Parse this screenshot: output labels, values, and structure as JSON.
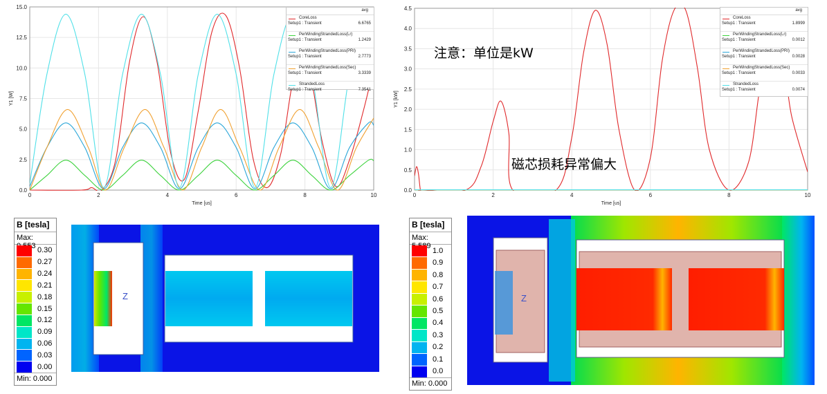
{
  "chart_data": [
    {
      "type": "line",
      "xlabel": "Time [us]",
      "ylabel": "Y1 [W]",
      "xlim": [
        0,
        10
      ],
      "ylim": [
        0,
        15
      ],
      "x_ticks": [
        "0",
        "2",
        "4",
        "6",
        "8",
        "10"
      ],
      "y_ticks": [
        "0.0",
        "2.5",
        "5.0",
        "7.5",
        "10.0",
        "12.5",
        "15.0"
      ],
      "grid": true,
      "legend_position": "top-right",
      "legend_header": "avg",
      "series": [
        {
          "name": "CoreLoss",
          "setup": "Setup1 : Transient",
          "avg": "6.6765",
          "color": "#e0282a",
          "x": [
            0,
            1.5,
            1.8,
            2.1,
            2.5,
            2.9,
            3.3,
            3.7,
            4.1,
            4.5,
            4.9,
            5.3,
            5.7,
            6.1,
            6.5,
            6.9,
            7.3,
            7.7,
            8.1,
            8.5,
            8.9,
            9.3,
            9.7,
            10
          ],
          "y": [
            0,
            0,
            0.2,
            0,
            2.5,
            10.5,
            14.2,
            10.5,
            3.0,
            0.9,
            6.5,
            13.0,
            14.3,
            10.0,
            2.5,
            0.2,
            3.0,
            9.5,
            10.0,
            4.0,
            0.3,
            2.5,
            6.5,
            10.0
          ]
        },
        {
          "name": "PerWindingStrandedLoss(Lr)",
          "setup": "Setup1 : Transient",
          "avg": "1.2429",
          "color": "#3cd23c",
          "x": [
            0,
            0.5,
            1.05,
            1.6,
            2.15,
            2.7,
            3.25,
            3.8,
            4.35,
            4.9,
            5.45,
            6.0,
            6.55,
            7.1,
            7.65,
            8.2,
            8.75,
            9.3,
            9.85,
            10
          ],
          "y": [
            0,
            1.2,
            2.45,
            1.2,
            0,
            1.2,
            2.45,
            1.2,
            0,
            1.2,
            2.45,
            1.2,
            0,
            1.2,
            2.45,
            1.2,
            0,
            1.2,
            2.45,
            2.4
          ]
        },
        {
          "name": "PerWindingStrandedLoss(PRI)",
          "setup": "Setup1 : Transient",
          "avg": "2.7773",
          "color": "#2aa6d8",
          "x": [
            0,
            0.5,
            1.05,
            1.6,
            2.15,
            2.7,
            3.25,
            3.8,
            4.35,
            4.9,
            5.45,
            6.0,
            6.55,
            7.1,
            7.65,
            8.2,
            8.75,
            9.3,
            9.85,
            10
          ],
          "y": [
            0.3,
            3.5,
            5.5,
            3.5,
            0.1,
            3.5,
            5.5,
            3.5,
            0.1,
            3.5,
            5.5,
            3.5,
            0.1,
            3.5,
            5.5,
            3.5,
            0.1,
            3.5,
            5.5,
            5.3
          ]
        },
        {
          "name": "PerWindingStrandedLoss(Sec)",
          "setup": "Setup1 : Transient",
          "avg": "3.3339",
          "color": "#f0a030",
          "x": [
            0,
            0.5,
            1.1,
            1.7,
            2.2,
            2.75,
            3.35,
            3.9,
            4.45,
            5.0,
            5.55,
            6.1,
            6.7,
            7.25,
            7.85,
            8.4,
            8.95,
            9.5,
            10
          ],
          "y": [
            0,
            3.5,
            6.6,
            3.5,
            0,
            3.5,
            6.6,
            3.5,
            0,
            3.5,
            6.6,
            3.5,
            0,
            3.5,
            6.6,
            3.5,
            0,
            3.5,
            5.9
          ]
        },
        {
          "name": "StrandedLoss",
          "setup": "Setup1 : Transient",
          "avg": "7.3541",
          "color": "#4fe0e8",
          "x": [
            0,
            0.5,
            1.05,
            1.6,
            2.15,
            2.7,
            3.25,
            3.8,
            4.35,
            4.9,
            5.45,
            6.0,
            6.55,
            7.1,
            7.65,
            8.2,
            8.75,
            9.3,
            9.85,
            10
          ],
          "y": [
            0.5,
            9.5,
            14.4,
            9.5,
            0.2,
            9.5,
            14.4,
            9.5,
            0.2,
            9.5,
            14.4,
            9.5,
            0.2,
            9.5,
            14.4,
            9.5,
            0.2,
            9.5,
            14.4,
            14.0
          ]
        }
      ]
    },
    {
      "type": "line",
      "xlabel": "Time [us]",
      "ylabel": "Y1 [kW]",
      "xlim": [
        0,
        10
      ],
      "ylim": [
        0,
        4.5
      ],
      "x_ticks": [
        "0",
        "2",
        "4",
        "6",
        "8",
        "10"
      ],
      "y_ticks": [
        "0.0",
        "0.5",
        "1.0",
        "1.5",
        "2.0",
        "2.5",
        "3.0",
        "3.5",
        "4.0",
        "4.5"
      ],
      "grid": true,
      "legend_position": "top-right",
      "legend_header": "avg",
      "series": [
        {
          "name": "CoreLoss",
          "setup": "Setup1 : Transient",
          "avg": "1.8999",
          "color": "#e0282a",
          "x": [
            0,
            0.05,
            0.1,
            0.15,
            0.2,
            1.3,
            1.7,
            2.0,
            2.2,
            2.4,
            2.5,
            3.6,
            4.0,
            4.3,
            4.6,
            4.9,
            5.2,
            5.6,
            6.0,
            6.3,
            6.6,
            6.9,
            7.2,
            7.5,
            8.0,
            8.5,
            8.8,
            9.1,
            9.4,
            9.6,
            10
          ],
          "y": [
            0.35,
            0.58,
            0.4,
            0,
            0,
            0,
            0.6,
            1.7,
            2.2,
            1.4,
            0,
            0,
            1.3,
            3.4,
            4.45,
            3.6,
            1.5,
            0,
            0.8,
            3.2,
            4.45,
            4.45,
            3.0,
            1.0,
            0,
            0.7,
            2.6,
            3.5,
            3.0,
            1.8,
            0.45
          ]
        },
        {
          "name": "PerWindingStrandedLoss(Lr)",
          "setup": "Setup1 : Transient",
          "avg": "0.0012",
          "color": "#3cd23c",
          "x": [
            0,
            10
          ],
          "y": [
            0.001,
            0.001
          ]
        },
        {
          "name": "PerWindingStrandedLoss(PRI)",
          "setup": "Setup1 : Transient",
          "avg": "0.0028",
          "color": "#2aa6d8",
          "x": [
            0,
            10
          ],
          "y": [
            0.003,
            0.003
          ]
        },
        {
          "name": "PerWindingStrandedLoss(Sec)",
          "setup": "Setup1 : Transient",
          "avg": "0.0033",
          "color": "#f0a030",
          "x": [
            0,
            10
          ],
          "y": [
            0.003,
            0.003
          ]
        },
        {
          "name": "StrandedLoss",
          "setup": "Setup1 : Transient",
          "avg": "0.0074",
          "color": "#4fe0e8",
          "x": [
            0,
            10
          ],
          "y": [
            0.007,
            0.007
          ]
        }
      ],
      "annotations": [
        "注意：单位是kW",
        "磁芯损耗异常偏大"
      ]
    },
    {
      "type": "heatmap",
      "colorbar_title": "B [tesla]",
      "max_label": "Max: 0.553",
      "min_label": "Min: 0.000",
      "levels": [
        "0.30",
        "0.27",
        "0.24",
        "0.21",
        "0.18",
        "0.15",
        "0.12",
        "0.09",
        "0.06",
        "0.03",
        "0.00"
      ],
      "colors": [
        "#ff0000",
        "#ff6a00",
        "#ffb400",
        "#ffe600",
        "#c8f000",
        "#64e600",
        "#00e664",
        "#00e6c8",
        "#00b4f0",
        "#0064ff",
        "#0000f0"
      ],
      "axis_label": "Z"
    },
    {
      "type": "heatmap",
      "colorbar_title": "B [tesla]",
      "max_label": "Max: 5.589",
      "min_label": "Min: 0.000",
      "levels": [
        "1.0",
        "0.9",
        "0.8",
        "0.7",
        "0.6",
        "0.5",
        "0.4",
        "0.3",
        "0.2",
        "0.1",
        "0.0"
      ],
      "colors": [
        "#ff0000",
        "#ff6a00",
        "#ffb400",
        "#ffe600",
        "#c8f000",
        "#64e600",
        "#00e664",
        "#00e6c8",
        "#00b4f0",
        "#0064ff",
        "#0000f0"
      ],
      "axis_label": "Z"
    }
  ]
}
